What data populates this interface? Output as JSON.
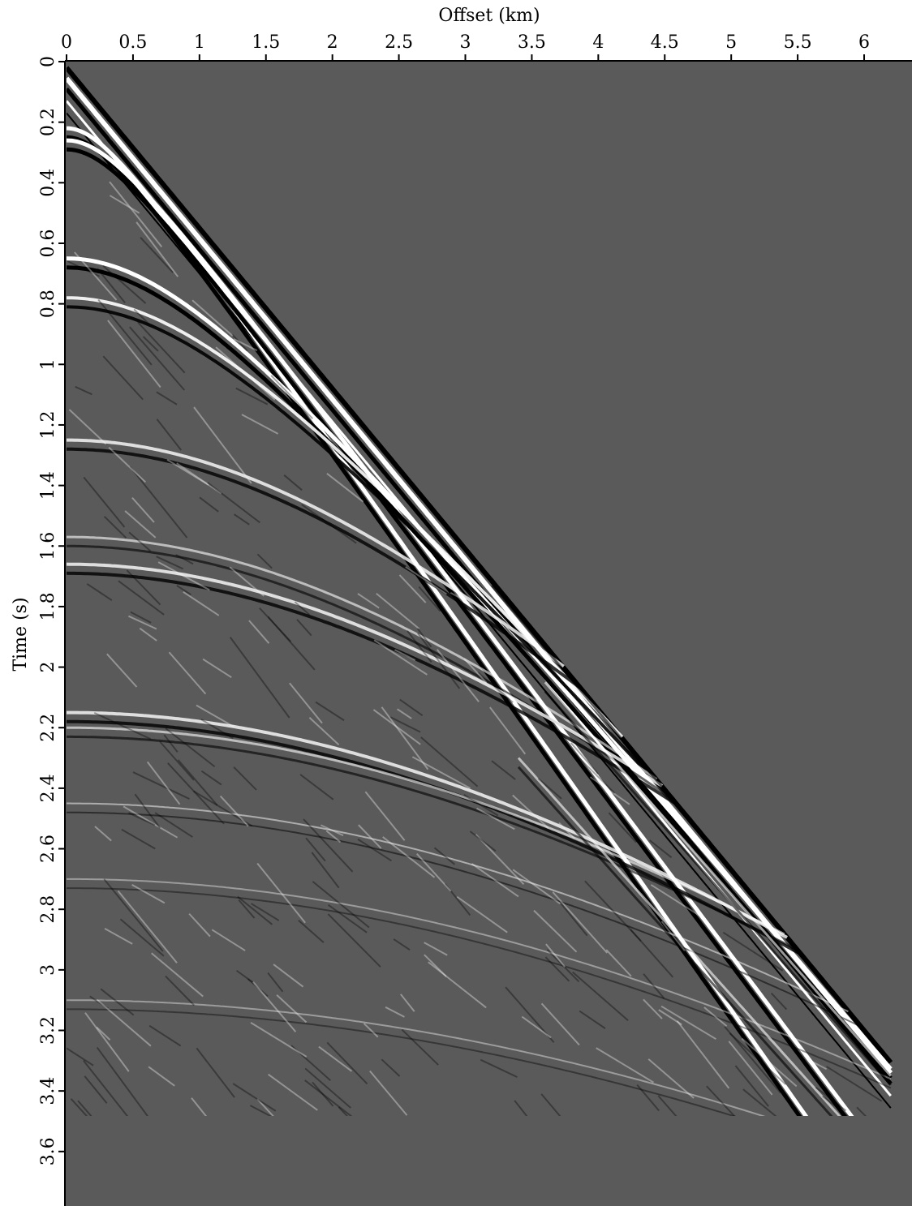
{
  "chart_data": {
    "type": "seismic",
    "x_label": "Offset (km)",
    "y_label": "Time (s)",
    "xlim": [
      0,
      6.36
    ],
    "xticks": [
      0,
      0.5,
      1,
      1.5,
      2,
      2.5,
      3,
      3.5,
      4,
      4.5,
      5,
      5.5,
      6
    ],
    "ylim": [
      0,
      3.78
    ],
    "yticks": [
      0,
      0.2,
      0.4,
      0.6,
      0.8,
      1,
      1.2,
      1.4,
      1.6,
      1.8,
      2,
      2.2,
      2.4,
      2.6,
      2.8,
      3,
      3.2,
      3.4,
      3.6
    ],
    "background": "#5a5a5a"
  }
}
